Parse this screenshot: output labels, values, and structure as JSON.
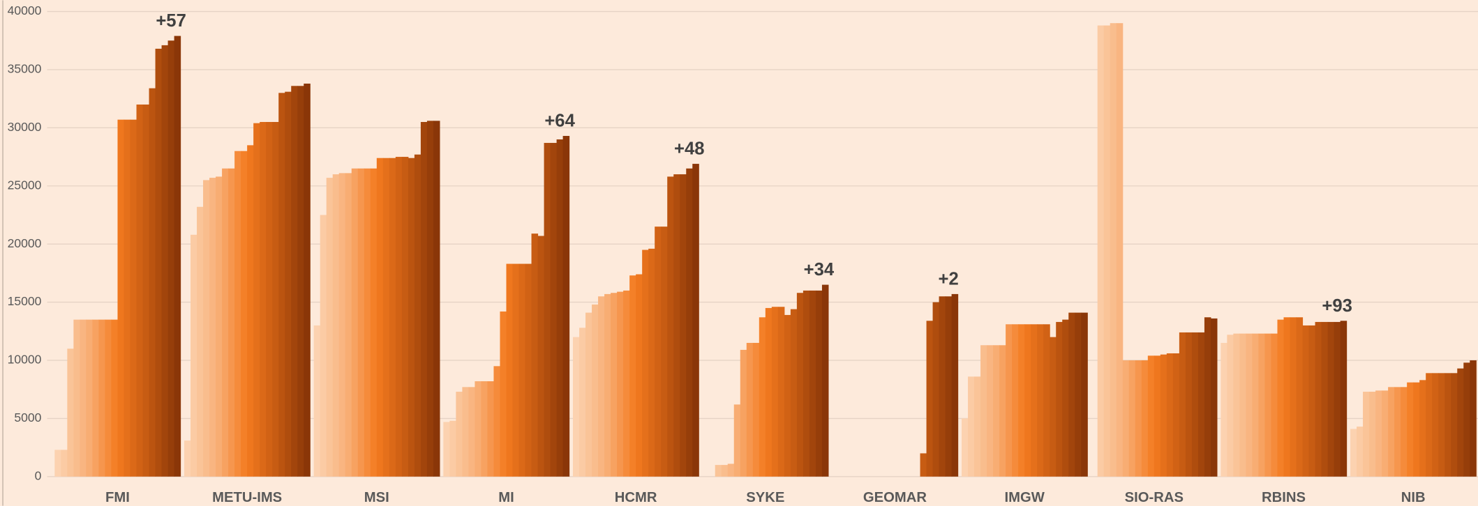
{
  "chart_data": {
    "type": "bar",
    "categories": [
      "FMI",
      "METU-IMS",
      "MSI",
      "MI",
      "HCMR",
      "SYKE",
      "GEOMAR",
      "IMGW",
      "SIO-RAS",
      "RBINS",
      "NIB"
    ],
    "values": [
      [
        2300,
        2300,
        11000,
        13500,
        13500,
        13500,
        13500,
        13500,
        13500,
        13500,
        30700,
        30700,
        30700,
        32000,
        32000,
        33400,
        36800,
        37100,
        37500,
        37900
      ],
      [
        3100,
        20800,
        23200,
        25500,
        25700,
        25800,
        26500,
        26500,
        28000,
        28000,
        28500,
        30400,
        30500,
        30500,
        30500,
        33000,
        33100,
        33600,
        33600,
        33800
      ],
      [
        13000,
        22500,
        25700,
        26000,
        26100,
        26100,
        26500,
        26500,
        26500,
        26500,
        27400,
        27400,
        27400,
        27500,
        27500,
        27400,
        27700,
        30500,
        30600,
        30600
      ],
      [
        4700,
        4800,
        7300,
        7700,
        7700,
        8200,
        8200,
        8200,
        9500,
        14200,
        18300,
        18300,
        18300,
        18300,
        20900,
        20700,
        28700,
        28700,
        29000,
        29300
      ],
      [
        12000,
        12800,
        14100,
        14800,
        15500,
        15700,
        15800,
        15900,
        16000,
        17300,
        17400,
        19500,
        19600,
        21500,
        21500,
        25800,
        26000,
        26000,
        26500,
        26900
      ],
      [
        0,
        0,
        1000,
        1000,
        1100,
        6200,
        10900,
        11500,
        11500,
        13700,
        14500,
        14600,
        14600,
        13900,
        14400,
        15800,
        16000,
        16000,
        16000,
        16500
      ],
      [
        0,
        0,
        0,
        0,
        0,
        0,
        0,
        0,
        0,
        0,
        0,
        0,
        0,
        0,
        2000,
        13400,
        15000,
        15500,
        15500,
        15700
      ],
      [
        5000,
        8600,
        8600,
        11300,
        11300,
        11300,
        11300,
        13100,
        13100,
        13100,
        13100,
        13100,
        13100,
        13100,
        12000,
        13300,
        13500,
        14100,
        14100,
        14100
      ],
      [
        0,
        38800,
        38800,
        39000,
        39000,
        10000,
        10000,
        10000,
        10000,
        10400,
        10400,
        10500,
        10600,
        10600,
        12400,
        12400,
        12400,
        12400,
        13700,
        13600
      ],
      [
        11500,
        12200,
        12300,
        12300,
        12300,
        12300,
        12300,
        12300,
        12300,
        13500,
        13700,
        13700,
        13700,
        13000,
        13000,
        13300,
        13300,
        13300,
        13300,
        13400
      ],
      [
        4100,
        4300,
        7300,
        7300,
        7400,
        7400,
        7700,
        7700,
        7700,
        8100,
        8100,
        8300,
        8900,
        8900,
        8900,
        8900,
        8900,
        9300,
        9800,
        10000
      ]
    ],
    "annotations": [
      "+57",
      null,
      null,
      "+64",
      "+48",
      "+34",
      "+2",
      null,
      null,
      "+93",
      null
    ],
    "colors": [
      "#fcd2b0",
      "#f8b078",
      "#f47a1f",
      "#c45a12",
      "#8a3608"
    ],
    "ylim": [
      0,
      40000
    ],
    "yticks": [
      0,
      5000,
      10000,
      15000,
      20000,
      25000,
      30000,
      35000,
      40000
    ],
    "grid": true
  }
}
